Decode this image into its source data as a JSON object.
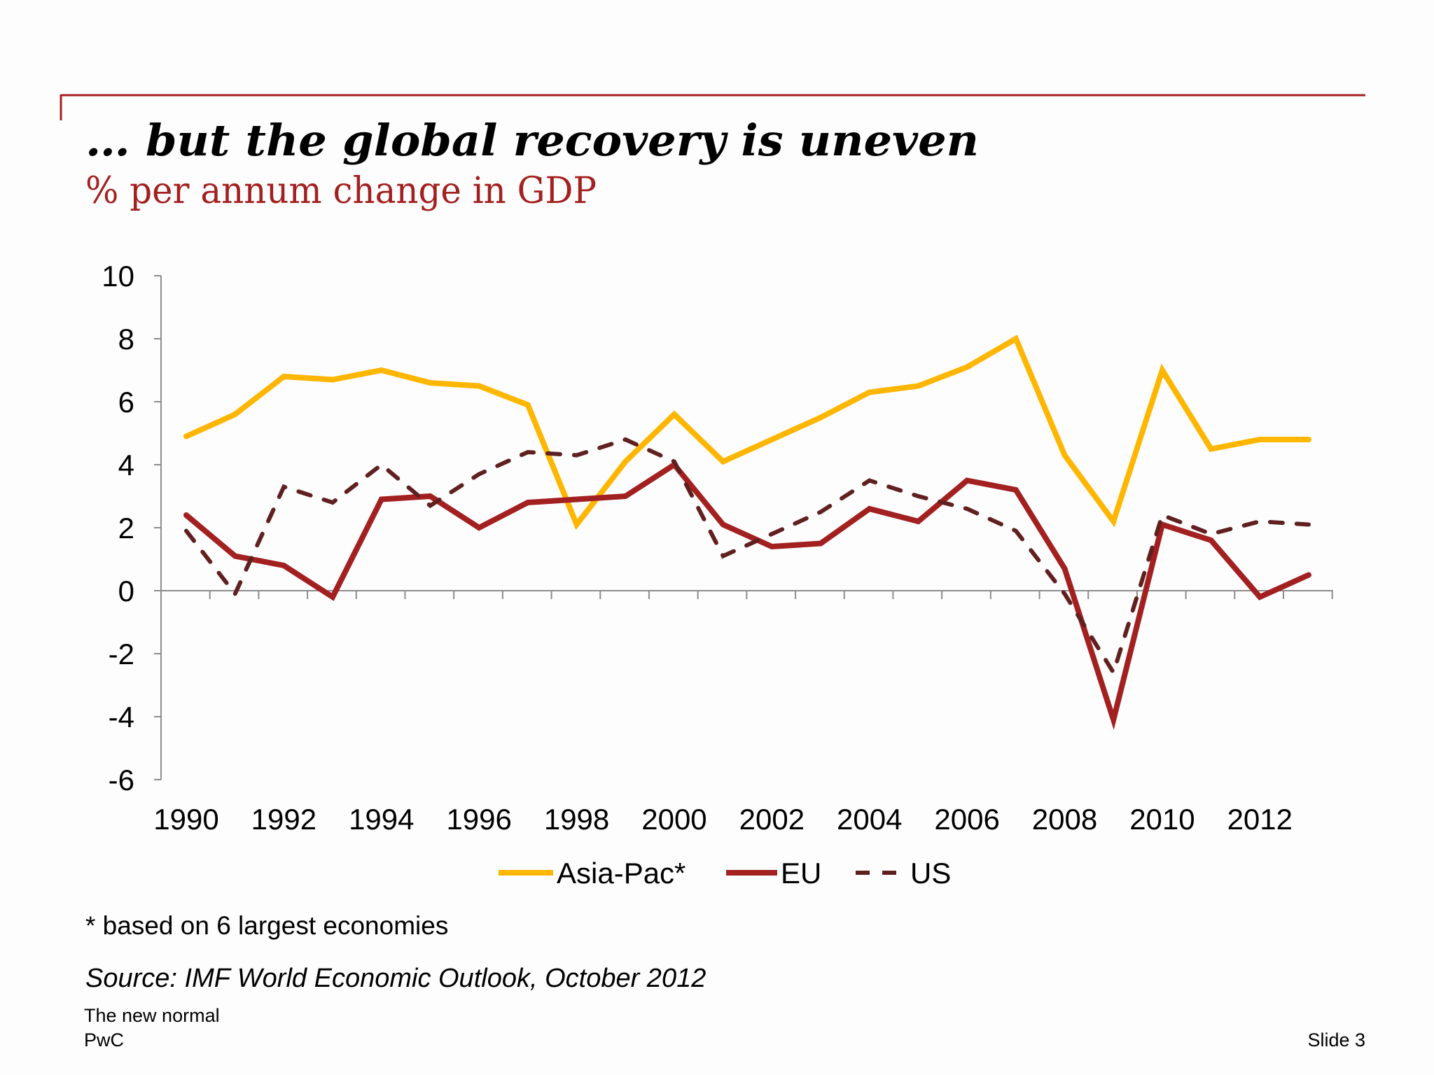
{
  "slide": {
    "title": "… but the global recovery is uneven",
    "subtitle": "% per annum change in GDP",
    "footnote": "* based on 6 largest economies",
    "source": "Source: IMF World Economic Outlook, October 2012",
    "footer_line1": "The new normal",
    "footer_line2": "PwC",
    "slide_number": "Slide 3",
    "accent_color": "#a32020"
  },
  "chart_data": {
    "type": "line",
    "title": "",
    "xlabel": "",
    "ylabel": "",
    "x": [
      1990,
      1991,
      1992,
      1993,
      1994,
      1995,
      1996,
      1997,
      1998,
      1999,
      2000,
      2001,
      2002,
      2003,
      2004,
      2005,
      2006,
      2007,
      2008,
      2009,
      2010,
      2011,
      2012,
      2013
    ],
    "x_tick_labels": [
      "1990",
      "1992",
      "1994",
      "1996",
      "1998",
      "2000",
      "2002",
      "2004",
      "2006",
      "2008",
      "2010",
      "2012"
    ],
    "y_tick_labels": [
      "10",
      "8",
      "6",
      "4",
      "2",
      "0",
      "-2",
      "-4",
      "-6"
    ],
    "ylim": [
      -6,
      10
    ],
    "grid": false,
    "legend_position": "bottom",
    "series": [
      {
        "name": "Asia-Pac*",
        "color": "#ffb600",
        "dash": "solid",
        "values": [
          4.9,
          5.6,
          6.8,
          6.7,
          7.0,
          6.6,
          6.5,
          5.9,
          2.1,
          4.1,
          5.6,
          4.1,
          4.8,
          5.5,
          6.3,
          6.5,
          7.1,
          8.0,
          4.3,
          2.2,
          7.0,
          4.5,
          4.8,
          4.8
        ]
      },
      {
        "name": "EU",
        "color": "#a32020",
        "dash": "solid",
        "values": [
          2.4,
          1.1,
          0.8,
          -0.2,
          2.9,
          3.0,
          2.0,
          2.8,
          2.9,
          3.0,
          4.0,
          2.1,
          1.4,
          1.5,
          2.6,
          2.2,
          3.5,
          3.2,
          0.7,
          -4.1,
          2.1,
          1.6,
          -0.2,
          0.5
        ]
      },
      {
        "name": "US",
        "color": "#602020",
        "dash": "dashed",
        "values": [
          1.9,
          -0.1,
          3.3,
          2.8,
          4.0,
          2.7,
          3.7,
          4.4,
          4.3,
          4.8,
          4.1,
          1.1,
          1.8,
          2.5,
          3.5,
          3.0,
          2.6,
          1.9,
          -0.1,
          -2.6,
          2.4,
          1.8,
          2.2,
          2.1
        ]
      }
    ]
  }
}
